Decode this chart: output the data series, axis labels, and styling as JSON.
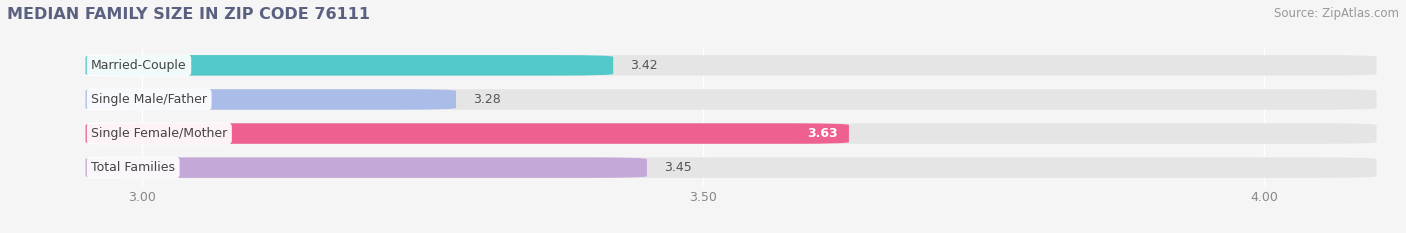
{
  "title": "MEDIAN FAMILY SIZE IN ZIP CODE 76111",
  "source": "Source: ZipAtlas.com",
  "categories": [
    "Married-Couple",
    "Single Male/Father",
    "Single Female/Mother",
    "Total Families"
  ],
  "values": [
    3.42,
    3.28,
    3.63,
    3.45
  ],
  "bar_colors": [
    "#52C8C8",
    "#AABCE8",
    "#EE6090",
    "#C4A8D8"
  ],
  "value_label_inside": [
    false,
    false,
    true,
    false
  ],
  "xlim": [
    2.88,
    4.12
  ],
  "xstart": 2.95,
  "xticks": [
    3.0,
    3.5,
    4.0
  ],
  "xtick_labels": [
    "3.00",
    "3.50",
    "4.00"
  ],
  "background_color": "#f5f5f5",
  "bar_bg_color": "#e5e5e5",
  "title_color": "#5a6080",
  "title_fontsize": 11.5,
  "source_fontsize": 8.5,
  "bar_height": 0.6,
  "val_label_fontsize": 9,
  "cat_label_fontsize": 9,
  "tick_fontsize": 9,
  "bar_gap": 0.25
}
